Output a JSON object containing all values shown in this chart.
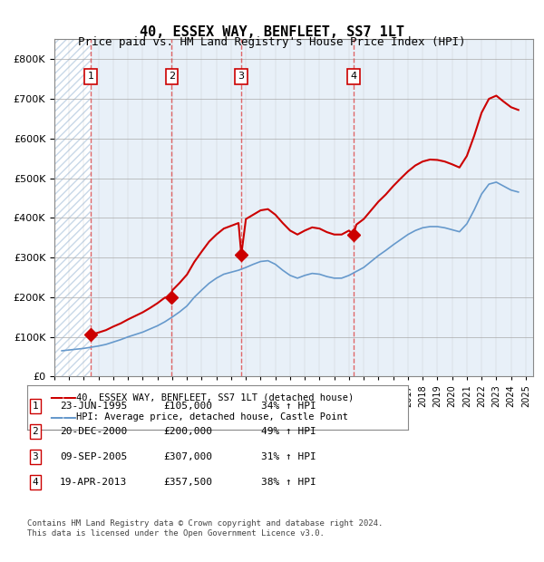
{
  "title": "40, ESSEX WAY, BENFLEET, SS7 1LT",
  "subtitle": "Price paid vs. HM Land Registry's House Price Index (HPI)",
  "ylabel": "",
  "ylim": [
    0,
    850000
  ],
  "yticks": [
    0,
    100000,
    200000,
    300000,
    400000,
    500000,
    600000,
    700000,
    800000
  ],
  "ytick_labels": [
    "£0",
    "£100K",
    "£200K",
    "£300K",
    "£400K",
    "£500K",
    "£600K",
    "£700K",
    "£800K"
  ],
  "xlim_start": 1993.0,
  "xlim_end": 2025.5,
  "sale_dates": [
    1995.47,
    2000.97,
    2005.69,
    2013.3
  ],
  "sale_prices": [
    105000,
    200000,
    307000,
    357500
  ],
  "sale_labels": [
    "1",
    "2",
    "3",
    "4"
  ],
  "hpi_years": [
    1993.5,
    1994.0,
    1994.5,
    1995.0,
    1995.5,
    1996.0,
    1996.5,
    1997.0,
    1997.5,
    1998.0,
    1998.5,
    1999.0,
    1999.5,
    2000.0,
    2000.5,
    2001.0,
    2001.5,
    2002.0,
    2002.5,
    2003.0,
    2003.5,
    2004.0,
    2004.5,
    2005.0,
    2005.5,
    2006.0,
    2006.5,
    2007.0,
    2007.5,
    2008.0,
    2008.5,
    2009.0,
    2009.5,
    2010.0,
    2010.5,
    2011.0,
    2011.5,
    2012.0,
    2012.5,
    2013.0,
    2013.5,
    2014.0,
    2014.5,
    2015.0,
    2015.5,
    2016.0,
    2016.5,
    2017.0,
    2017.5,
    2018.0,
    2018.5,
    2019.0,
    2019.5,
    2020.0,
    2020.5,
    2021.0,
    2021.5,
    2022.0,
    2022.5,
    2023.0,
    2023.5,
    2024.0,
    2024.5
  ],
  "hpi_values": [
    65000,
    67000,
    69000,
    71000,
    74000,
    77000,
    81000,
    87000,
    93000,
    100000,
    106000,
    112000,
    120000,
    128000,
    138000,
    150000,
    163000,
    178000,
    200000,
    218000,
    235000,
    248000,
    258000,
    263000,
    268000,
    275000,
    283000,
    290000,
    292000,
    283000,
    268000,
    255000,
    248000,
    255000,
    260000,
    258000,
    252000,
    248000,
    248000,
    255000,
    265000,
    275000,
    290000,
    305000,
    318000,
    332000,
    345000,
    358000,
    368000,
    375000,
    378000,
    378000,
    375000,
    370000,
    365000,
    385000,
    420000,
    460000,
    485000,
    490000,
    480000,
    470000,
    465000
  ],
  "red_line_years": [
    1995.47,
    1995.6,
    1996.0,
    1996.5,
    1997.0,
    1997.5,
    1998.0,
    1998.5,
    1999.0,
    1999.5,
    2000.0,
    2000.5,
    2000.97,
    2001.0,
    2001.5,
    2002.0,
    2002.5,
    2003.0,
    2003.5,
    2004.0,
    2004.5,
    2005.0,
    2005.5,
    2005.69,
    2006.0,
    2006.5,
    2007.0,
    2007.5,
    2008.0,
    2008.5,
    2009.0,
    2009.5,
    2010.0,
    2010.5,
    2011.0,
    2011.5,
    2012.0,
    2012.5,
    2013.0,
    2013.3,
    2013.5,
    2014.0,
    2014.5,
    2015.0,
    2015.5,
    2016.0,
    2016.5,
    2017.0,
    2017.5,
    2018.0,
    2018.5,
    2019.0,
    2019.5,
    2020.0,
    2020.5,
    2021.0,
    2021.5,
    2022.0,
    2022.5,
    2023.0,
    2023.5,
    2024.0,
    2024.5
  ],
  "red_line_values": [
    105000,
    107000,
    111000,
    117000,
    126000,
    134000,
    144000,
    153000,
    162000,
    173000,
    185000,
    199000,
    200000,
    217000,
    236000,
    257000,
    289000,
    315000,
    340000,
    358000,
    373000,
    380000,
    387000,
    307000,
    397000,
    408000,
    419000,
    422000,
    408000,
    387000,
    368000,
    358000,
    368000,
    376000,
    373000,
    364000,
    358000,
    358000,
    368000,
    357500,
    383000,
    397000,
    419000,
    441000,
    459000,
    480000,
    499000,
    517000,
    532000,
    542000,
    547000,
    546000,
    542000,
    535000,
    527000,
    556000,
    607000,
    665000,
    700000,
    708000,
    693000,
    679000,
    672000
  ],
  "bg_color": "#e8f0f8",
  "hatch_color": "#c8d8e8",
  "grid_color": "#aaaaaa",
  "red_color": "#cc0000",
  "blue_color": "#6699cc",
  "vline_color": "#dd4444",
  "legend_entries": [
    "40, ESSEX WAY, BENFLEET, SS7 1LT (detached house)",
    "HPI: Average price, detached house, Castle Point"
  ],
  "table_data": [
    [
      "1",
      "23-JUN-1995",
      "£105,000",
      "34% ↑ HPI"
    ],
    [
      "2",
      "20-DEC-2000",
      "£200,000",
      "49% ↑ HPI"
    ],
    [
      "3",
      "09-SEP-2005",
      "£307,000",
      "31% ↑ HPI"
    ],
    [
      "4",
      "19-APR-2013",
      "£357,500",
      "38% ↑ HPI"
    ]
  ],
  "footnote": "Contains HM Land Registry data © Crown copyright and database right 2024.\nThis data is licensed under the Open Government Licence v3.0."
}
